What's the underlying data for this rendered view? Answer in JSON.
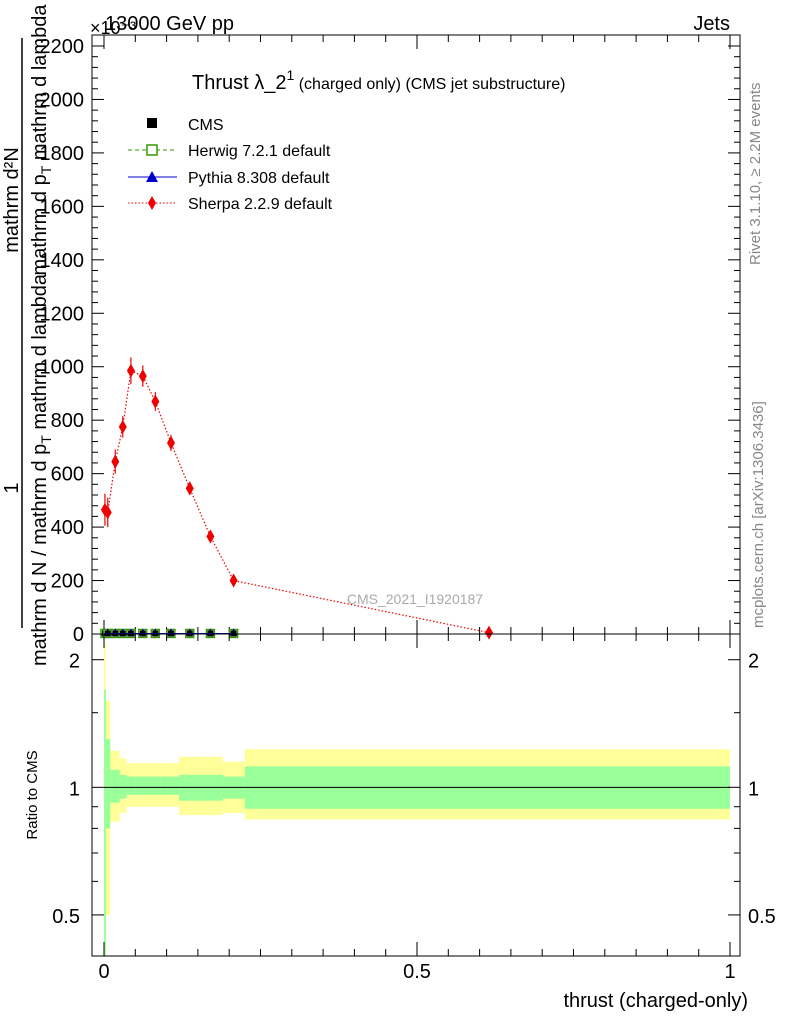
{
  "header": {
    "left": "13000 GeV pp",
    "right": "Jets",
    "exponent": "×10⁻³"
  },
  "side": {
    "rivet": "Rivet 3.1.10, ≥ 2.2M events",
    "mcplots": "mcplots.cern.ch [arXiv:1306.3436]"
  },
  "watermark": "CMS_2021_I1920187",
  "title": {
    "main": "Thrust λ_2",
    "sup": "1",
    "rest": " (charged only) (CMS jet substructure)"
  },
  "ylabel": {
    "numerator": "1",
    "frac1": "mathrm d N / mathrm d p",
    "frac1_sub": "T",
    "frac1_tail": " mathrm d lambda",
    "top_num": "mathrm d²N",
    "top_den": "mathrm d p",
    "top_den_sub": "T",
    "top_den_tail": " mathrm d lambda"
  },
  "ratio_ylabel": "Ratio to CMS",
  "xlabel": "thrust (charged-only)",
  "colors": {
    "cms": "#000000",
    "herwig": "#339900",
    "pythia": "#0000cc",
    "sherpa": "#ee0000",
    "band_inner": "#99ff99",
    "band_outer": "#ffff99"
  },
  "chart_data": {
    "type": "line",
    "xlim": [
      0,
      1
    ],
    "ylim": [
      0,
      2200
    ],
    "y_scale_note": "×10⁻³",
    "x_ticks": [
      "0",
      "0.5",
      "1"
    ],
    "y_ticks": [
      "0",
      "200",
      "400",
      "600",
      "800",
      "1000",
      "1200",
      "1400",
      "1600",
      "1800",
      "2000",
      "2200"
    ],
    "ratio_ylim": [
      0.4,
      2.3
    ],
    "ratio_ticks": [
      "0.5",
      "1",
      "2"
    ],
    "legend": [
      {
        "name": "CMS",
        "marker": "square-filled"
      },
      {
        "name": "Herwig 7.2.1 default",
        "marker": "square-open",
        "style": "dashed"
      },
      {
        "name": "Pythia 8.308 default",
        "marker": "triangle",
        "style": "solid"
      },
      {
        "name": "Sherpa 2.2.9 default",
        "marker": "diamond",
        "style": "dotted"
      }
    ],
    "series": [
      {
        "name": "Sherpa 2.2.9 default",
        "x": [
          0.0015,
          0.006,
          0.018,
          0.03,
          0.043,
          0.062,
          0.082,
          0.107,
          0.137,
          0.17,
          0.207,
          0.615
        ],
        "y": [
          465,
          455,
          645,
          775,
          985,
          965,
          870,
          715,
          545,
          365,
          200,
          5
        ],
        "yerr": [
          60,
          55,
          45,
          40,
          50,
          40,
          35,
          30,
          25,
          15,
          8,
          3
        ]
      },
      {
        "name": "CMS",
        "x": [
          0.0015,
          0.006,
          0.018,
          0.03,
          0.043,
          0.062,
          0.082,
          0.107,
          0.137,
          0.17,
          0.207,
          0.615
        ],
        "y": [
          2,
          2,
          2,
          2,
          2,
          2,
          2,
          2,
          2,
          2,
          2,
          2
        ]
      }
    ],
    "ratio_bands": {
      "edges": [
        0,
        0.003,
        0.01,
        0.025,
        0.036,
        0.05,
        0.075,
        0.09,
        0.12,
        0.155,
        0.19,
        0.225,
        1.0
      ],
      "inner_lo": [
        0.35,
        0.8,
        0.92,
        0.94,
        0.96,
        0.96,
        0.96,
        0.96,
        0.93,
        0.93,
        0.94,
        0.89
      ],
      "inner_hi": [
        1.7,
        1.3,
        1.1,
        1.07,
        1.06,
        1.06,
        1.06,
        1.06,
        1.07,
        1.07,
        1.06,
        1.12
      ],
      "outer_lo": [
        0.25,
        0.5,
        0.83,
        0.87,
        0.9,
        0.9,
        0.9,
        0.9,
        0.86,
        0.86,
        0.87,
        0.84
      ],
      "outer_hi": [
        2.2,
        1.6,
        1.22,
        1.17,
        1.14,
        1.14,
        1.14,
        1.14,
        1.18,
        1.18,
        1.15,
        1.23
      ]
    }
  }
}
